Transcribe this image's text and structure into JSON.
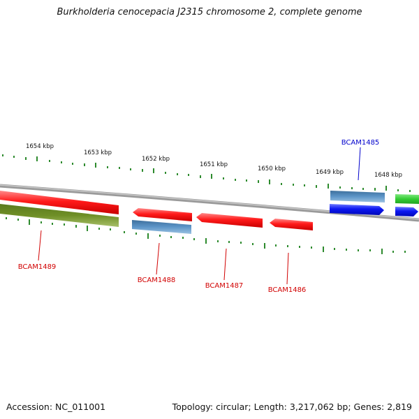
{
  "title": "Burkholderia cenocepacia J2315 chromosome 2, complete genome",
  "footer": {
    "accession": "Accession: NC_011001",
    "summary": "Topology: circular; Length: 3,217,062 bp; Genes: 2,819"
  },
  "ruler": [
    "1654 kbp",
    "1653 kbp",
    "1652 kbp",
    "1651 kbp",
    "1650 kbp",
    "1649 kbp",
    "1648 kbp"
  ],
  "genes": [
    {
      "name": "BCAM1489",
      "color": "#d10000"
    },
    {
      "name": "BCAM1488",
      "color": "#d10000"
    },
    {
      "name": "BCAM1487",
      "color": "#d10000"
    },
    {
      "name": "BCAM1486",
      "color": "#d10000"
    },
    {
      "name": "BCAM1485",
      "color": "#0000cc"
    }
  ],
  "colors": {
    "cds": "#ff0000",
    "cds_blue": "#0a14f0",
    "gene_steel": "#4a84b8",
    "gene_olive": "#6b8e23",
    "gene_green": "#33cc33",
    "backbone": "#8c8c8c",
    "ticks": "#2e8b2e"
  }
}
